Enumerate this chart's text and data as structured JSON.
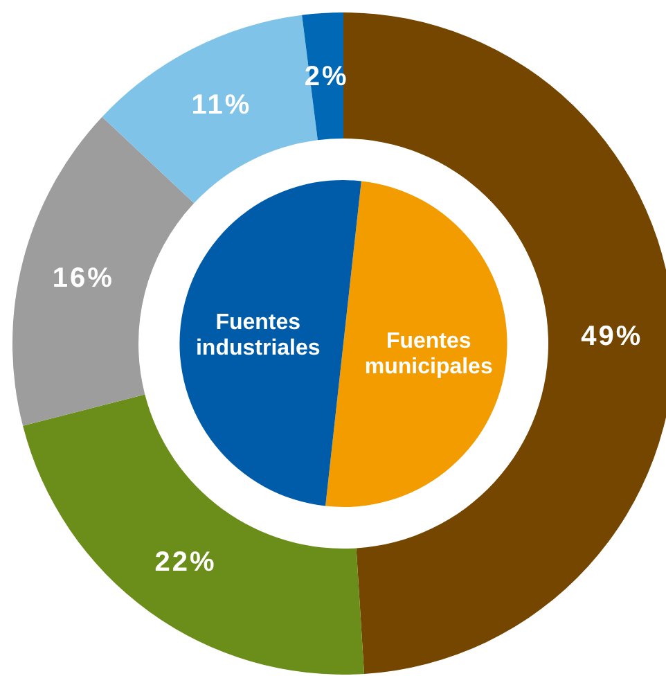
{
  "chart_data": [
    {
      "type": "donut",
      "categories": [
        null,
        null,
        null,
        null,
        null
      ],
      "values": [
        49,
        22,
        16,
        11,
        2
      ],
      "colors": [
        "#744600",
        "#6b8e1a",
        "#9d9d9d",
        "#7fc3e8",
        "#0068b4"
      ],
      "value_labels": [
        "49%",
        "22%",
        "16%",
        "11%",
        "2%"
      ]
    },
    {
      "type": "pie",
      "categories": [
        "Fuentes municipales",
        "Fuentes industriales"
      ],
      "values": [
        50,
        50
      ],
      "colors": [
        "#f39c00",
        "#005ca8"
      ]
    }
  ]
}
